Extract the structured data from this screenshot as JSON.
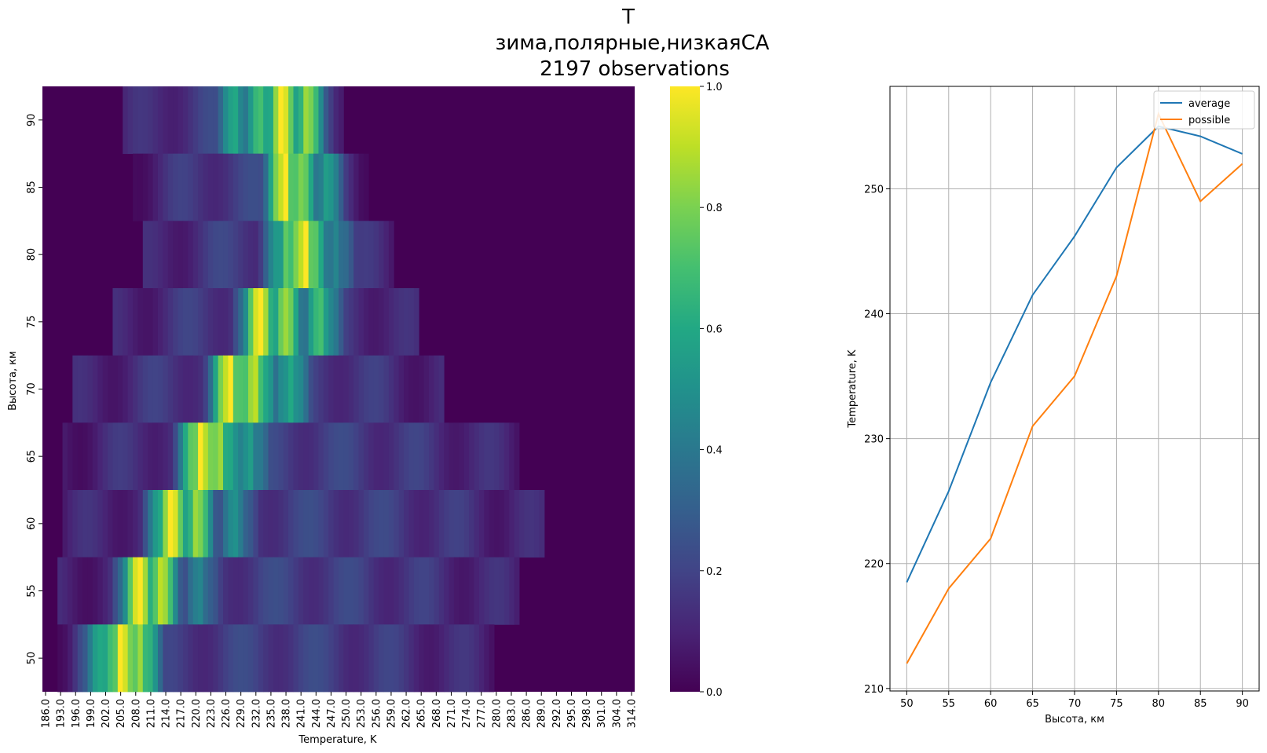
{
  "figure": {
    "title_lines": [
      "T",
      "зима,полярные,низкаяСА",
      "2197 observations"
    ]
  },
  "chart_data": [
    {
      "type": "heatmap",
      "xlabel": "Temperature, K",
      "ylabel": "Высота, км",
      "x_tick_labels": [
        "186.0",
        "193.0",
        "196.0",
        "199.0",
        "202.0",
        "205.0",
        "208.0",
        "211.0",
        "214.0",
        "217.0",
        "220.0",
        "223.0",
        "226.0",
        "229.0",
        "232.0",
        "235.0",
        "238.0",
        "241.0",
        "244.0",
        "247.0",
        "250.0",
        "253.0",
        "256.0",
        "259.0",
        "262.0",
        "265.0",
        "268.0",
        "271.0",
        "274.0",
        "277.0",
        "280.0",
        "283.0",
        "286.0",
        "289.0",
        "292.0",
        "295.0",
        "298.0",
        "301.0",
        "304.0",
        "314.0"
      ],
      "y_categories": [
        "90",
        "85",
        "80",
        "75",
        "70",
        "65",
        "60",
        "55",
        "50"
      ],
      "colorbar": {
        "range": [
          0.0,
          1.0
        ],
        "ticks": [
          "0.0",
          "0.2",
          "0.4",
          "0.6",
          "0.8",
          "1.0"
        ],
        "colormap": "viridis"
      },
      "n_columns": 118,
      "rows": [
        {
          "altitude": "90",
          "start_col": 16,
          "end_col": 60,
          "peaks": [
            {
              "col": 47,
              "value": 1.0
            },
            {
              "col": 52,
              "value": 0.85
            },
            {
              "col": 43,
              "value": 0.7
            },
            {
              "col": 38,
              "value": 0.6
            }
          ]
        },
        {
          "altitude": "85",
          "start_col": 18,
          "end_col": 65,
          "peaks": [
            {
              "col": 48,
              "value": 1.0
            },
            {
              "col": 51,
              "value": 0.8
            },
            {
              "col": 56,
              "value": 0.55
            }
          ]
        },
        {
          "altitude": "80",
          "start_col": 20,
          "end_col": 70,
          "peaks": [
            {
              "col": 52,
              "value": 1.0
            },
            {
              "col": 48,
              "value": 0.75
            },
            {
              "col": 58,
              "value": 0.45
            }
          ]
        },
        {
          "altitude": "75",
          "start_col": 14,
          "end_col": 75,
          "peaks": [
            {
              "col": 43,
              "value": 1.0
            },
            {
              "col": 48,
              "value": 0.85
            },
            {
              "col": 55,
              "value": 0.7
            }
          ]
        },
        {
          "altitude": "70",
          "start_col": 6,
          "end_col": 80,
          "peaks": [
            {
              "col": 37,
              "value": 1.0
            },
            {
              "col": 42,
              "value": 0.9
            },
            {
              "col": 49,
              "value": 0.6
            }
          ]
        },
        {
          "altitude": "65",
          "start_col": 4,
          "end_col": 95,
          "peaks": [
            {
              "col": 31,
              "value": 1.0
            },
            {
              "col": 35,
              "value": 0.85
            },
            {
              "col": 41,
              "value": 0.55
            }
          ]
        },
        {
          "altitude": "60",
          "start_col": 4,
          "end_col": 100,
          "peaks": [
            {
              "col": 25,
              "value": 1.0
            },
            {
              "col": 30,
              "value": 0.85
            },
            {
              "col": 38,
              "value": 0.5
            }
          ]
        },
        {
          "altitude": "55",
          "start_col": 3,
          "end_col": 95,
          "peaks": [
            {
              "col": 19,
              "value": 1.0
            },
            {
              "col": 23,
              "value": 0.9
            },
            {
              "col": 31,
              "value": 0.45
            }
          ]
        },
        {
          "altitude": "50",
          "start_col": 3,
          "end_col": 90,
          "peaks": [
            {
              "col": 15,
              "value": 1.0
            },
            {
              "col": 19,
              "value": 0.85
            },
            {
              "col": 11,
              "value": 0.6
            }
          ]
        }
      ]
    },
    {
      "type": "line",
      "xlabel": "Высота, км",
      "ylabel": "Temperature, K",
      "x": [
        50,
        55,
        60,
        65,
        70,
        75,
        80,
        85,
        90
      ],
      "xlim": [
        48,
        92
      ],
      "ylim": [
        209.8,
        258.2
      ],
      "x_ticks": [
        50,
        55,
        60,
        65,
        70,
        75,
        80,
        85,
        90
      ],
      "y_ticks": [
        210,
        220,
        230,
        240,
        250
      ],
      "grid": true,
      "legend_position": "top-right",
      "series": [
        {
          "name": "average",
          "color": "#1f77b4",
          "values": [
            218.5,
            225.8,
            234.5,
            241.5,
            246.2,
            251.7,
            255.0,
            254.2,
            252.8
          ]
        },
        {
          "name": "possible",
          "color": "#ff7f0e",
          "values": [
            212.0,
            218.0,
            222.0,
            231.0,
            235.0,
            243.0,
            256.0,
            249.0,
            252.0
          ]
        }
      ]
    }
  ]
}
